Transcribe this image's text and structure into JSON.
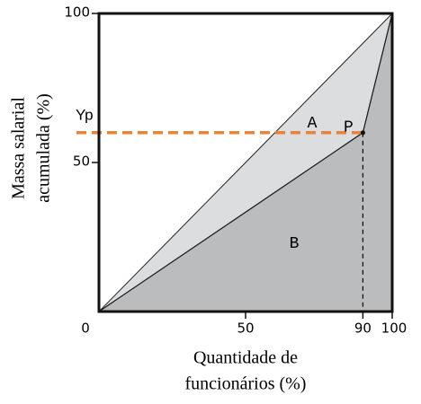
{
  "chart_data": {
    "type": "lorenz",
    "y_label": [
      "Massa salarial",
      "acumulada (%)"
    ],
    "x_label": [
      "Quantidade de",
      "funcionários (%)"
    ],
    "xlim": [
      0,
      100
    ],
    "ylim": [
      0,
      100
    ],
    "xticks": [
      0,
      50,
      90,
      100
    ],
    "yticks": [
      50,
      100
    ],
    "equality": {
      "x": [
        0,
        100
      ],
      "y": [
        0,
        100
      ]
    },
    "curve": {
      "x": [
        0,
        90,
        100
      ],
      "y": [
        0,
        60,
        100
      ]
    },
    "point": {
      "label": "P",
      "x": 90,
      "y": 60
    },
    "reference": {
      "label": "Yp",
      "y": 60,
      "color": "#e8843a"
    },
    "regions": [
      {
        "label": "A",
        "color": "#dcdddf"
      },
      {
        "label": "B",
        "color": "#babcbe"
      }
    ]
  }
}
